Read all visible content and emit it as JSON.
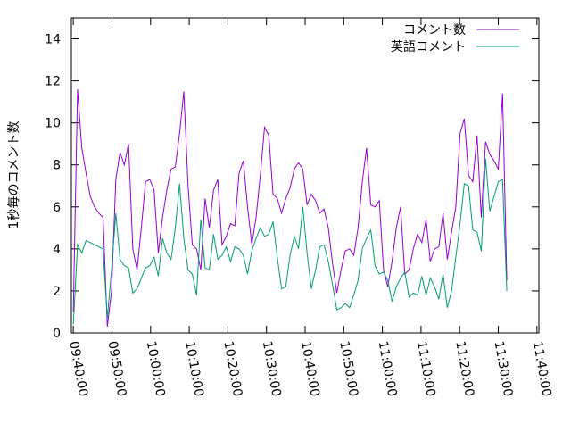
{
  "chart_data": {
    "type": "line",
    "y_label": "1秒毎のコメント数",
    "x": [
      580,
      581.1,
      582.2,
      583.3,
      584.4,
      585.5,
      586.6,
      587.7,
      588.8,
      589.9,
      591,
      592.1,
      593.2,
      594.3,
      595.4,
      596.5,
      597.6,
      598.7,
      599.8,
      600.9,
      602,
      603.1,
      604.2,
      605.3,
      606.4,
      607.5,
      608.6,
      609.7,
      610.8,
      611.9,
      613,
      614.1,
      615.2,
      616.3,
      617.4,
      618.5,
      619.6,
      620.7,
      621.8,
      622.9,
      624,
      625.1,
      626.2,
      627.3,
      628.4,
      629.5,
      630.6,
      631.7,
      632.8,
      633.9,
      635,
      636.1,
      637.2,
      638.3,
      639.4,
      640.5,
      641.6,
      642.7,
      643.8,
      644.9,
      646,
      647.1,
      648.2,
      649.3,
      650.4,
      651.5,
      652.6,
      653.7,
      654.8,
      655.9,
      657,
      658.1,
      659.2,
      660.3,
      661.4,
      662.5,
      663.6,
      664.7,
      665.8,
      666.9,
      668,
      669.1,
      670.2,
      671.3,
      672.4,
      673.5,
      674.6,
      675.7,
      676.8,
      677.9,
      679,
      680.1,
      681.2,
      682.3,
      683.4,
      684.5,
      685.6,
      686.7,
      687.8,
      688.9,
      690,
      691.1,
      692.2
    ],
    "series": [
      {
        "name": "コメント数",
        "color": "#9400d3",
        "values": [
          1.0,
          11.6,
          8.8,
          7.6,
          6.5,
          6.0,
          5.7,
          5.5,
          0.3,
          2.0,
          7.3,
          8.6,
          8.0,
          9.0,
          4.0,
          3.0,
          5.0,
          7.2,
          7.3,
          6.8,
          3.8,
          5.5,
          6.8,
          7.8,
          7.9,
          9.5,
          11.5,
          7.0,
          4.2,
          4.0,
          3.0,
          6.4,
          5.0,
          6.8,
          7.3,
          4.2,
          4.6,
          5.2,
          5.1,
          7.6,
          8.2,
          6.0,
          4.2,
          5.5,
          7.5,
          9.8,
          9.4,
          6.6,
          6.4,
          5.7,
          6.4,
          6.9,
          7.8,
          8.1,
          7.8,
          6.1,
          6.6,
          6.3,
          5.7,
          5.9,
          5.0,
          3.3,
          1.9,
          3.0,
          3.9,
          4.0,
          3.7,
          5.0,
          7.2,
          8.8,
          6.1,
          6.0,
          6.3,
          3.0,
          2.2,
          3.4,
          5.0,
          6.0,
          2.8,
          3.0,
          4.0,
          4.7,
          4.3,
          5.4,
          3.4,
          4.0,
          4.1,
          5.7,
          3.5,
          4.8,
          6.0,
          9.5,
          10.2,
          7.5,
          7.2,
          9.4,
          5.5,
          9.1,
          8.5,
          8.2,
          7.8,
          11.4,
          2.5
        ]
      },
      {
        "name": "英語コメント",
        "color": "#009e73",
        "values": [
          0.4,
          4.2,
          3.8,
          4.4,
          4.3,
          4.2,
          4.1,
          4.0,
          0.7,
          3.0,
          5.7,
          3.5,
          3.2,
          3.1,
          1.9,
          2.1,
          2.6,
          3.1,
          3.2,
          3.6,
          2.7,
          4.5,
          3.8,
          3.5,
          5.0,
          7.1,
          4.5,
          3.0,
          2.8,
          1.8,
          5.4,
          3.1,
          3.0,
          4.7,
          3.5,
          3.7,
          4.1,
          3.4,
          4.1,
          4.0,
          3.7,
          2.8,
          3.9,
          4.5,
          5.0,
          4.6,
          4.7,
          5.3,
          3.6,
          2.1,
          2.2,
          3.7,
          4.6,
          4.0,
          6.0,
          3.8,
          2.1,
          3.0,
          4.1,
          4.2,
          3.4,
          2.3,
          1.1,
          1.2,
          1.4,
          1.2,
          1.8,
          2.5,
          4.0,
          4.5,
          4.9,
          3.2,
          2.8,
          2.9,
          2.5,
          1.5,
          2.2,
          2.6,
          2.9,
          1.7,
          1.9,
          1.8,
          2.7,
          1.8,
          2.6,
          2.2,
          1.6,
          2.8,
          1.2,
          2.0,
          3.6,
          5.2,
          7.1,
          7.0,
          4.9,
          4.8,
          3.9,
          8.3,
          5.8,
          6.5,
          7.2,
          7.3,
          2.0
        ]
      }
    ],
    "xlim": [
      579.5,
      700.5
    ],
    "xticks": [
      {
        "value": 580,
        "label": "09:40:00"
      },
      {
        "value": 590,
        "label": "09:50:00"
      },
      {
        "value": 600,
        "label": "10:00:00"
      },
      {
        "value": 610,
        "label": "10:10:00"
      },
      {
        "value": 620,
        "label": "10:20:00"
      },
      {
        "value": 630,
        "label": "10:30:00"
      },
      {
        "value": 640,
        "label": "10:40:00"
      },
      {
        "value": 650,
        "label": "10:50:00"
      },
      {
        "value": 660,
        "label": "11:00:00"
      },
      {
        "value": 670,
        "label": "11:10:00"
      },
      {
        "value": 680,
        "label": "11:20:00"
      },
      {
        "value": 690,
        "label": "11:30:00"
      },
      {
        "value": 700,
        "label": "11:40:00"
      }
    ],
    "ylim": [
      0,
      15
    ],
    "yticks": [
      0,
      2,
      4,
      6,
      8,
      10,
      12,
      14
    ],
    "legend": "top-right"
  }
}
